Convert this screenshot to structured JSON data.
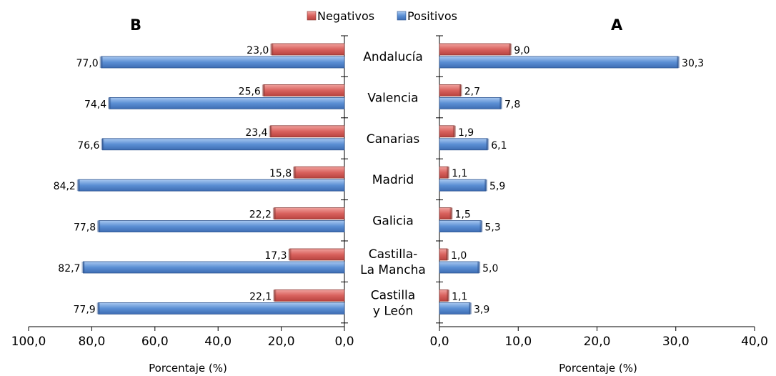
{
  "legend": {
    "negative_label": "Negativos",
    "positive_label": "Positivos"
  },
  "colors": {
    "negative": "#d9625e",
    "positive": "#5b8fd4"
  },
  "chart_data": [
    {
      "type": "bar",
      "orientation": "horizontal",
      "panel_label": "B",
      "direction": "reversed",
      "categories": [
        "Andalucía",
        "Valencia",
        "Canarias",
        "Madrid",
        "Galicia",
        "Castilla-La Mancha",
        "Castilla y León"
      ],
      "category_lines": [
        [
          "Andalucía"
        ],
        [
          "Valencia"
        ],
        [
          "Canarias"
        ],
        [
          "Madrid"
        ],
        [
          "Galicia"
        ],
        [
          "Castilla-",
          "La Mancha"
        ],
        [
          "Castilla",
          "y León"
        ]
      ],
      "series": [
        {
          "name": "Negativos",
          "values": [
            23.0,
            25.6,
            23.4,
            15.8,
            22.2,
            17.3,
            22.1
          ],
          "labels": [
            "23,0",
            "25,6",
            "23,4",
            "15,8",
            "22,2",
            "17,3",
            "22,1"
          ]
        },
        {
          "name": "Positivos",
          "values": [
            77.0,
            74.4,
            76.6,
            84.2,
            77.8,
            82.7,
            77.9
          ],
          "labels": [
            "77,0",
            "74,4",
            "76,6",
            "84,2",
            "77,8",
            "82,7",
            "77,9"
          ]
        }
      ],
      "xlim": [
        0,
        100
      ],
      "xticks": [
        100,
        80,
        60,
        40,
        20,
        0
      ],
      "xtick_labels": [
        "100,0",
        "80,0",
        "60,0",
        "40,0",
        "20,0",
        "0,0"
      ],
      "xlabel": "Porcentaje (%)",
      "grid": false
    },
    {
      "type": "bar",
      "orientation": "horizontal",
      "panel_label": "A",
      "direction": "normal",
      "categories": [
        "Andalucía",
        "Valencia",
        "Canarias",
        "Madrid",
        "Galicia",
        "Castilla-La Mancha",
        "Castilla y León"
      ],
      "series": [
        {
          "name": "Negativos",
          "values": [
            9.0,
            2.7,
            1.9,
            1.1,
            1.5,
            1.0,
            1.1
          ],
          "labels": [
            "9,0",
            "2,7",
            "1,9",
            "1,1",
            "1,5",
            "1,0",
            "1,1"
          ]
        },
        {
          "name": "Positivos",
          "values": [
            30.3,
            7.8,
            6.1,
            5.9,
            5.3,
            5.0,
            3.9
          ],
          "labels": [
            "30,3",
            "7,8",
            "6,1",
            "5,9",
            "5,3",
            "5,0",
            "3,9"
          ]
        }
      ],
      "xlim": [
        0,
        40
      ],
      "xticks": [
        0,
        10,
        20,
        30,
        40
      ],
      "xtick_labels": [
        "0,0",
        "10,0",
        "20,0",
        "30,0",
        "40,0"
      ],
      "xlabel": "Porcentaje (%)",
      "grid": false
    }
  ]
}
